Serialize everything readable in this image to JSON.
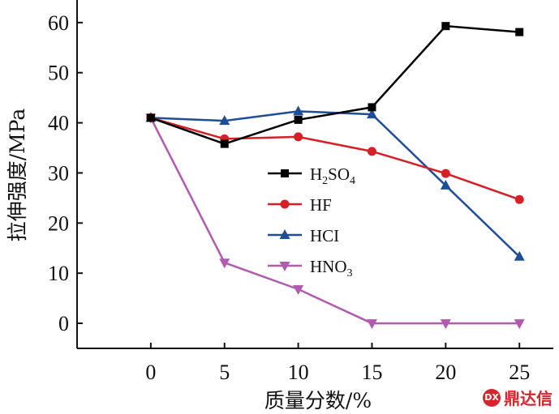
{
  "chart_data": {
    "type": "line",
    "xlabel": "质量分数/%",
    "ylabel": "拉伸强度/MPa",
    "x": [
      0,
      5,
      10,
      15,
      20,
      25
    ],
    "xlim": [
      -5,
      27.3
    ],
    "ylim": [
      -5,
      64.5
    ],
    "xticks": [
      "0",
      "5",
      "10",
      "15",
      "20",
      "25"
    ],
    "yticks": [
      "0",
      "10",
      "20",
      "30",
      "40",
      "50",
      "60"
    ],
    "grid": false,
    "legend_position": "center-right",
    "series": [
      {
        "name": "H2SO4",
        "name_base": "H",
        "name_sub1": "2",
        "name_mid": "SO",
        "name_sub2": "4",
        "color": "#000000",
        "marker": "square",
        "values": [
          41.0,
          35.8,
          40.6,
          43.1,
          59.3,
          58.1
        ]
      },
      {
        "name": "HF",
        "color": "#d61f26",
        "marker": "circle",
        "values": [
          41.0,
          36.8,
          37.2,
          34.3,
          29.9,
          24.7
        ]
      },
      {
        "name": "HCI",
        "color": "#1f4e96",
        "marker": "triangle-up",
        "values": [
          41.0,
          40.4,
          42.3,
          41.7,
          27.5,
          13.3
        ]
      },
      {
        "name": "HNO3",
        "name_base": "HNO",
        "name_sub1": "3",
        "color": "#b05ab0",
        "marker": "triangle-down",
        "values": [
          41.0,
          12.1,
          6.8,
          0.0,
          0.0,
          0.0
        ]
      }
    ]
  },
  "watermark": {
    "logo_text": "DX",
    "text": "鼎达信"
  }
}
